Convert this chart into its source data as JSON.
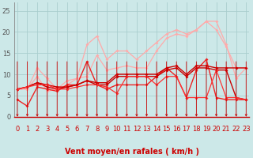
{
  "bg_color": "#cce8e8",
  "grid_color": "#aacece",
  "x_label": "Vent moyen/en rafales ( km/h )",
  "x_ticks": [
    0,
    1,
    2,
    3,
    4,
    5,
    6,
    7,
    8,
    9,
    10,
    11,
    12,
    13,
    14,
    15,
    16,
    17,
    18,
    19,
    20,
    21,
    22,
    23
  ],
  "ylim": [
    0,
    27
  ],
  "xlim": [
    -0.3,
    23.3
  ],
  "yticks": [
    0,
    5,
    10,
    15,
    20,
    25
  ],
  "series": [
    {
      "color": "#ffaaaa",
      "lw": 0.9,
      "marker": "D",
      "ms": 2.0,
      "y": [
        6.5,
        6.5,
        11.5,
        9.0,
        6.5,
        8.5,
        9.0,
        17.0,
        19.0,
        13.5,
        15.5,
        15.5,
        13.5,
        15.5,
        17.5,
        19.5,
        20.5,
        19.5,
        20.5,
        22.5,
        22.5,
        17.0,
        9.0,
        11.5
      ]
    },
    {
      "color": "#ffaaaa",
      "lw": 0.9,
      "marker": "D",
      "ms": 2.0,
      "y": [
        6.5,
        6.5,
        9.5,
        6.0,
        6.5,
        7.5,
        9.0,
        9.5,
        14.5,
        11.0,
        11.5,
        12.0,
        11.5,
        11.5,
        15.5,
        18.5,
        19.5,
        19.0,
        20.5,
        22.5,
        20.5,
        16.5,
        11.5,
        11.5
      ]
    },
    {
      "color": "#ee2222",
      "lw": 1.0,
      "marker": "D",
      "ms": 2.0,
      "y": [
        4.0,
        2.5,
        7.0,
        6.5,
        6.0,
        7.5,
        7.5,
        13.0,
        7.5,
        6.5,
        7.5,
        7.5,
        7.5,
        7.5,
        9.5,
        11.5,
        9.5,
        4.5,
        11.0,
        13.5,
        4.5,
        4.0,
        4.0,
        4.0
      ]
    },
    {
      "color": "#cc0000",
      "lw": 1.0,
      "marker": "D",
      "ms": 2.0,
      "y": [
        6.5,
        7.0,
        8.0,
        7.0,
        6.5,
        7.0,
        7.5,
        8.5,
        7.5,
        7.5,
        9.5,
        9.5,
        9.5,
        9.5,
        9.5,
        11.0,
        11.5,
        9.5,
        11.5,
        11.5,
        11.0,
        11.0,
        4.5,
        4.0
      ]
    },
    {
      "color": "#cc0000",
      "lw": 1.0,
      "marker": "D",
      "ms": 2.0,
      "y": [
        6.5,
        7.0,
        8.0,
        7.5,
        7.0,
        7.0,
        7.5,
        8.5,
        8.0,
        8.0,
        10.0,
        10.0,
        10.0,
        10.0,
        10.0,
        11.5,
        12.0,
        10.0,
        12.0,
        12.0,
        11.5,
        11.5,
        11.5,
        11.5
      ]
    },
    {
      "color": "#ff3333",
      "lw": 0.9,
      "marker": "D",
      "ms": 2.0,
      "y": [
        6.5,
        7.0,
        7.5,
        7.5,
        6.5,
        6.5,
        7.0,
        7.5,
        7.5,
        7.0,
        5.5,
        9.5,
        9.5,
        9.5,
        7.5,
        9.5,
        9.5,
        4.5,
        4.5,
        4.5,
        11.0,
        4.5,
        4.5,
        4.0
      ]
    }
  ],
  "arrow_color": "#cc0000",
  "xlabel_color": "#cc0000",
  "xlabel_fontsize": 7,
  "tick_fontsize": 6,
  "ytick_color": "#555555",
  "xtick_color": "#cc0000"
}
